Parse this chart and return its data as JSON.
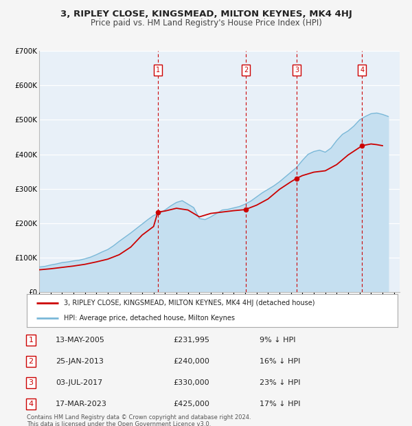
{
  "title": "3, RIPLEY CLOSE, KINGSMEAD, MILTON KEYNES, MK4 4HJ",
  "subtitle": "Price paid vs. HM Land Registry's House Price Index (HPI)",
  "hpi_label": "HPI: Average price, detached house, Milton Keynes",
  "property_label": "3, RIPLEY CLOSE, KINGSMEAD, MILTON KEYNES, MK4 4HJ (detached house)",
  "footnote1": "Contains HM Land Registry data © Crown copyright and database right 2024.",
  "footnote2": "This data is licensed under the Open Government Licence v3.0.",
  "hpi_color": "#7ab8d8",
  "hpi_fill_color": "#c5dff0",
  "price_color": "#cc0000",
  "background_color": "#f5f5f5",
  "plot_bg_color": "#e8f0f8",
  "grid_color": "#ffffff",
  "legend_bg": "#ffffff",
  "ylim": [
    0,
    700000
  ],
  "ytick_labels": [
    "£0",
    "£100K",
    "£200K",
    "£300K",
    "£400K",
    "£500K",
    "£600K",
    "£700K"
  ],
  "ytick_values": [
    0,
    100000,
    200000,
    300000,
    400000,
    500000,
    600000,
    700000
  ],
  "xlim_start": 1995.0,
  "xlim_end": 2026.5,
  "sales": [
    {
      "num": 1,
      "date": "13-MAY-2005",
      "price": 231995,
      "price_str": "£231,995",
      "pct": "9%",
      "year": 2005.37
    },
    {
      "num": 2,
      "date": "25-JAN-2013",
      "price": 240000,
      "price_str": "£240,000",
      "pct": "16%",
      "year": 2013.07
    },
    {
      "num": 3,
      "date": "03-JUL-2017",
      "price": 330000,
      "price_str": "£330,000",
      "pct": "23%",
      "year": 2017.5
    },
    {
      "num": 4,
      "date": "17-MAR-2023",
      "price": 425000,
      "price_str": "£425,000",
      "pct": "17%",
      "year": 2023.21
    }
  ],
  "vline_color": "#cc0000",
  "hpi_x": [
    1995.0,
    1995.5,
    1996.0,
    1996.5,
    1997.0,
    1997.5,
    1998.0,
    1998.5,
    1999.0,
    1999.5,
    2000.0,
    2000.5,
    2001.0,
    2001.5,
    2002.0,
    2002.5,
    2003.0,
    2003.5,
    2004.0,
    2004.5,
    2005.0,
    2005.5,
    2006.0,
    2006.5,
    2007.0,
    2007.5,
    2008.0,
    2008.5,
    2009.0,
    2009.5,
    2010.0,
    2010.5,
    2011.0,
    2011.5,
    2012.0,
    2012.5,
    2013.0,
    2013.5,
    2014.0,
    2014.5,
    2015.0,
    2015.5,
    2016.0,
    2016.5,
    2017.0,
    2017.5,
    2018.0,
    2018.5,
    2019.0,
    2019.5,
    2020.0,
    2020.5,
    2021.0,
    2021.5,
    2022.0,
    2022.5,
    2023.0,
    2023.5,
    2024.0,
    2024.5,
    2025.0,
    2025.5
  ],
  "hpi_y": [
    72000,
    74000,
    78000,
    81000,
    85000,
    87000,
    90000,
    92000,
    96000,
    101000,
    108000,
    116000,
    123000,
    134000,
    147000,
    159000,
    171000,
    184000,
    197000,
    210000,
    222000,
    228000,
    238000,
    250000,
    260000,
    265000,
    255000,
    245000,
    213000,
    210000,
    218000,
    228000,
    238000,
    240000,
    244000,
    248000,
    255000,
    264000,
    276000,
    288000,
    298000,
    308000,
    320000,
    334000,
    348000,
    362000,
    382000,
    400000,
    408000,
    412000,
    406000,
    418000,
    440000,
    458000,
    468000,
    482000,
    500000,
    510000,
    518000,
    520000,
    516000,
    510000
  ],
  "price_x": [
    1995.0,
    1996.0,
    1997.0,
    1998.0,
    1999.0,
    2000.0,
    2001.0,
    2002.0,
    2003.0,
    2004.0,
    2005.0,
    2005.37,
    2006.0,
    2007.0,
    2008.0,
    2009.0,
    2010.0,
    2011.0,
    2012.0,
    2013.0,
    2013.07,
    2014.0,
    2015.0,
    2016.0,
    2017.0,
    2017.5,
    2018.0,
    2019.0,
    2020.0,
    2021.0,
    2022.0,
    2023.0,
    2023.21,
    2024.0,
    2024.5,
    2025.0
  ],
  "price_y": [
    64000,
    67000,
    71000,
    75000,
    80000,
    87000,
    95000,
    108000,
    130000,
    165000,
    190000,
    231995,
    235000,
    243000,
    238000,
    218000,
    228000,
    232000,
    236000,
    239000,
    240000,
    252000,
    270000,
    298000,
    320000,
    330000,
    338000,
    348000,
    352000,
    370000,
    398000,
    420000,
    425000,
    430000,
    428000,
    425000
  ]
}
